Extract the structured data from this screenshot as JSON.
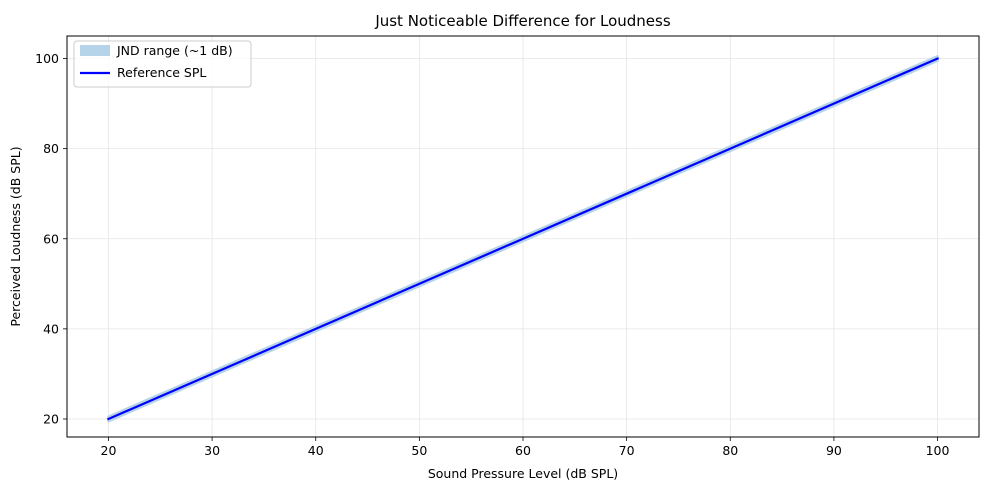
{
  "chart_data": {
    "type": "line",
    "title": "Just Noticeable Difference for Loudness",
    "xlabel": "Sound Pressure Level (dB SPL)",
    "ylabel": "Perceived Loudness (dB SPL)",
    "xlim": [
      16,
      104
    ],
    "ylim": [
      16,
      105
    ],
    "xticks": [
      20,
      30,
      40,
      50,
      60,
      70,
      80,
      90,
      100
    ],
    "yticks": [
      20,
      40,
      60,
      80,
      100
    ],
    "xtick_labels": [
      "20",
      "30",
      "40",
      "50",
      "60",
      "70",
      "80",
      "90",
      "100"
    ],
    "ytick_labels": [
      "20",
      "40",
      "60",
      "80",
      "100"
    ],
    "grid": true,
    "legend_position": "top-left",
    "series": [
      {
        "name": "Reference SPL",
        "kind": "line",
        "color": "#0000ff",
        "x": [
          20,
          100
        ],
        "y": [
          20,
          100
        ]
      },
      {
        "name": "JND range (~1 dB)",
        "kind": "band",
        "color": "#b6d4e9",
        "x": [
          20,
          100
        ],
        "y_lower": [
          19.5,
          99.5
        ],
        "y_upper": [
          20.5,
          100.5
        ]
      }
    ],
    "legend_labels": [
      "JND range (~1 dB)",
      "Reference SPL"
    ]
  }
}
